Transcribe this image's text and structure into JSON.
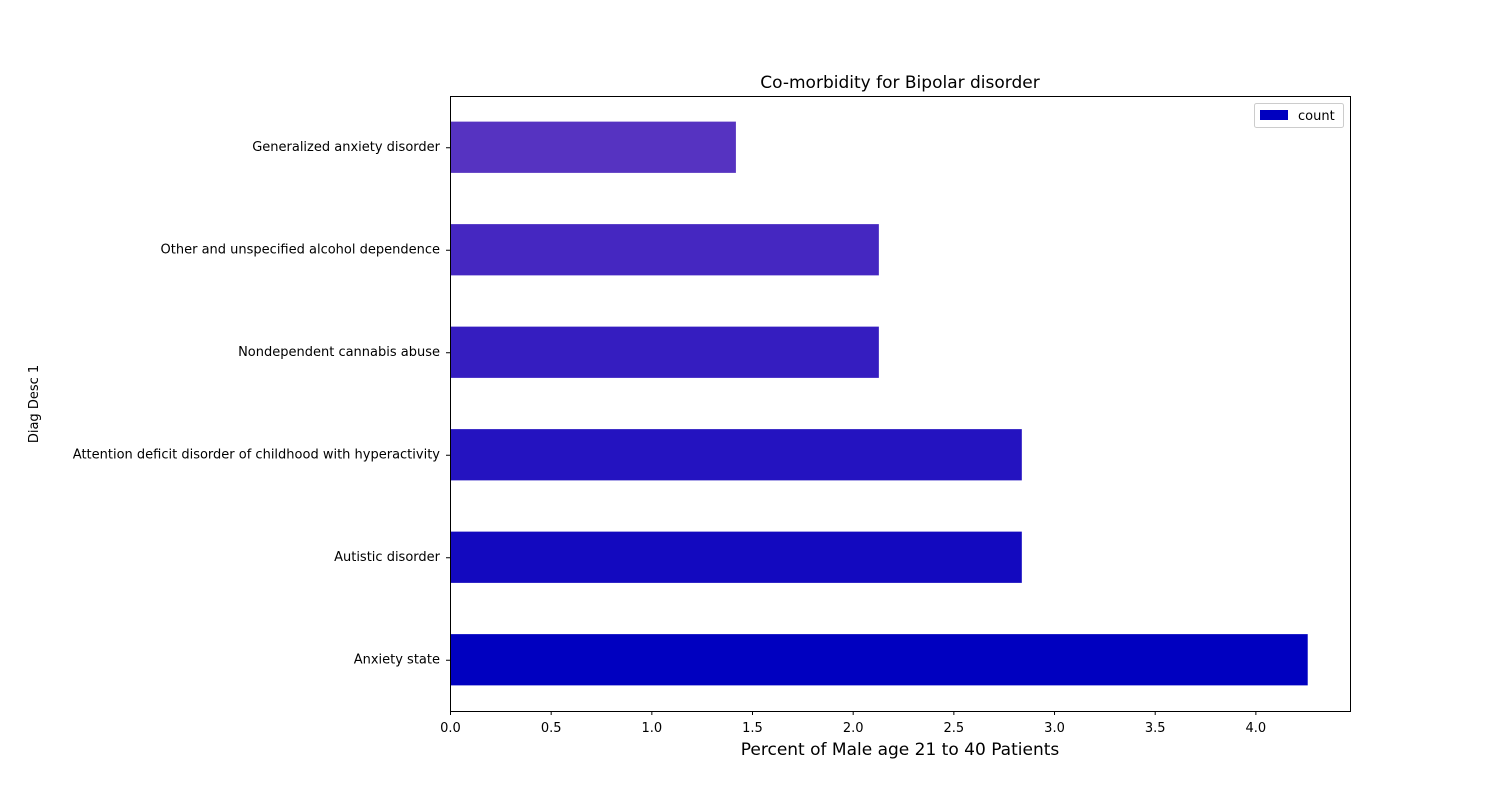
{
  "chart_data": {
    "type": "bar",
    "orientation": "horizontal",
    "title": "Co-morbidity for Bipolar disorder",
    "xlabel": "Percent of Male age 21 to 40 Patients",
    "ylabel": "Diag Desc 1",
    "xlim": [
      0,
      4.47
    ],
    "x_ticks": [
      "0.0",
      "0.5",
      "1.0",
      "1.5",
      "2.0",
      "2.5",
      "3.0",
      "3.5",
      "4.0"
    ],
    "grid": false,
    "legend": {
      "placement": "top-right",
      "entries": [
        {
          "label": "count",
          "color": "#0000c0"
        }
      ]
    },
    "categories": [
      "Anxiety state",
      "Autistic disorder",
      "Attention deficit disorder of childhood with hyperactivity",
      "Nondependent cannabis abuse",
      "Other and unspecified alcohol dependence",
      "Generalized anxiety disorder"
    ],
    "series": [
      {
        "name": "count",
        "values": [
          4.26,
          2.84,
          2.84,
          2.13,
          2.13,
          1.42
        ],
        "colors": [
          "#0000c0",
          "#1309bf",
          "#2413c0",
          "#351dc0",
          "#4527c1",
          "#5633c1"
        ]
      }
    ]
  }
}
